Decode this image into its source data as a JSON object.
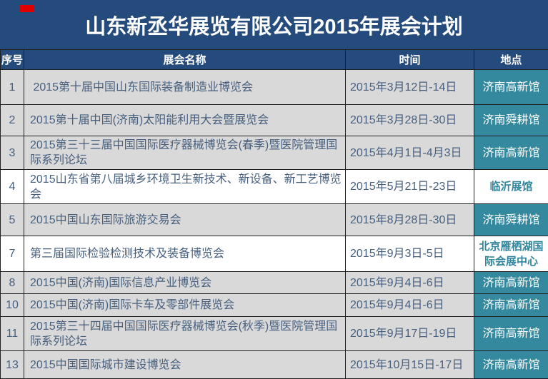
{
  "title": "山东新丞华展览有限公司2015年展会计划",
  "table": {
    "headers": [
      "序号",
      "展会名称",
      "时间",
      "地点"
    ],
    "rows": [
      {
        "no": "1",
        "name": " 2015第十届中国山东国际装备制造业博览会",
        "time": "2015年3月12日-14日",
        "venue": "济南高新馆",
        "highlight": false
      },
      {
        "no": "2",
        "name": "2015第十届中国(济南)太阳能利用大会暨展览会",
        "time": "2015年3月28日-30日",
        "venue": "济南舜耕馆",
        "highlight": false
      },
      {
        "no": "3",
        "name": "2015第三十三届中国国际医疗器械博览会(春季)暨医院管理国际系列论坛",
        "time": "2015年4月1日-4月3日",
        "venue": "济南高新馆",
        "highlight": false
      },
      {
        "no": "4",
        "name": "2015山东省第八届城乡环境卫生新技术、新设备、新工艺博览会",
        "time": "2015年5月21日-23日",
        "venue": "临沂展馆",
        "highlight": true
      },
      {
        "no": "5",
        "name": "2015中国山东国际旅游交易会",
        "time": "2015年8月28日-30日",
        "venue": "济南舜耕馆",
        "highlight": false
      },
      {
        "no": "7",
        "name": "第三届国际检验检测技术及装备博览会",
        "time": "2015年9月3日-5日",
        "venue": "北京雁栖湖国际会展中心",
        "highlight": true
      },
      {
        "no": "8",
        "name": "2015中国(济南)国际信息产业博览会",
        "time": "2015年9月4日-6日",
        "venue": "济南高新馆",
        "highlight": false
      },
      {
        "no": "10",
        "name": "2015中国(济南)国际卡车及零部件展览会",
        "time": "2015年9月4日-6日",
        "venue": "济南高新馆",
        "highlight": false
      },
      {
        "no": "11",
        "name": "2015第三十四届中国国际医疗器械博览会(秋季)暨医院管理国际系列论坛",
        "time": "2015年9月17日-19日",
        "venue": "济南高新馆",
        "highlight": false
      },
      {
        "no": "13",
        "name": "2015中国国际城市建设博览会",
        "time": "2015年10月15日-17日",
        "venue": "济南高新馆",
        "highlight": false
      }
    ]
  },
  "colors": {
    "title_bg": "#254a7c",
    "header_bg": "#254a7c",
    "row_gray": "#d9d9d9",
    "venue_teal_bg": "#35899e",
    "venue_teal_text": "#31859c",
    "body_text": "#465f7d",
    "marker_red": "#e00000"
  }
}
